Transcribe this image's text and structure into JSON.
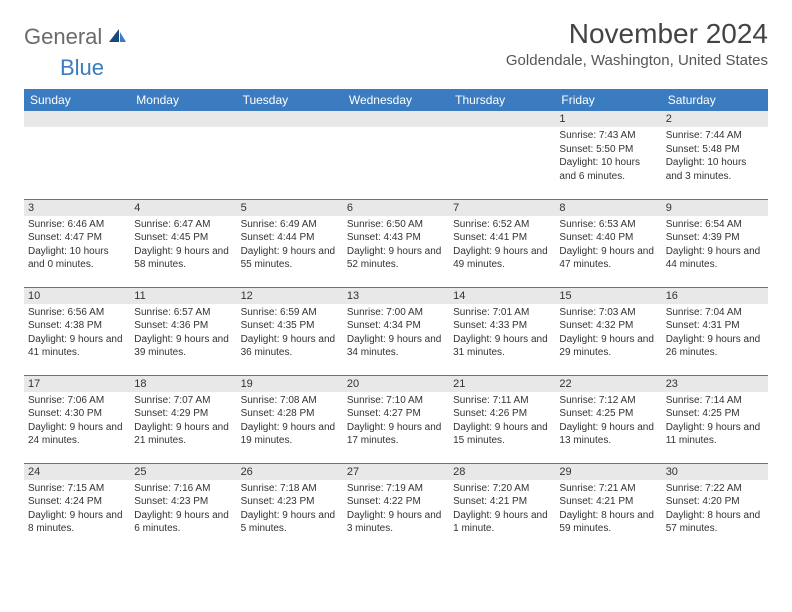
{
  "logo": {
    "text1": "General",
    "text2": "Blue"
  },
  "title": "November 2024",
  "location": "Goldendale, Washington, United States",
  "colors": {
    "header_bg": "#3b7bbf",
    "header_text": "#ffffff",
    "daynum_bg": "#e8e8e8",
    "border": "#3b7bbf",
    "logo_gray": "#6b6b6b",
    "logo_blue": "#3b7bbf"
  },
  "day_headers": [
    "Sunday",
    "Monday",
    "Tuesday",
    "Wednesday",
    "Thursday",
    "Friday",
    "Saturday"
  ],
  "weeks": [
    [
      null,
      null,
      null,
      null,
      null,
      {
        "num": "1",
        "sunrise": "Sunrise: 7:43 AM",
        "sunset": "Sunset: 5:50 PM",
        "daylight": "Daylight: 10 hours and 6 minutes."
      },
      {
        "num": "2",
        "sunrise": "Sunrise: 7:44 AM",
        "sunset": "Sunset: 5:48 PM",
        "daylight": "Daylight: 10 hours and 3 minutes."
      }
    ],
    [
      {
        "num": "3",
        "sunrise": "Sunrise: 6:46 AM",
        "sunset": "Sunset: 4:47 PM",
        "daylight": "Daylight: 10 hours and 0 minutes."
      },
      {
        "num": "4",
        "sunrise": "Sunrise: 6:47 AM",
        "sunset": "Sunset: 4:45 PM",
        "daylight": "Daylight: 9 hours and 58 minutes."
      },
      {
        "num": "5",
        "sunrise": "Sunrise: 6:49 AM",
        "sunset": "Sunset: 4:44 PM",
        "daylight": "Daylight: 9 hours and 55 minutes."
      },
      {
        "num": "6",
        "sunrise": "Sunrise: 6:50 AM",
        "sunset": "Sunset: 4:43 PM",
        "daylight": "Daylight: 9 hours and 52 minutes."
      },
      {
        "num": "7",
        "sunrise": "Sunrise: 6:52 AM",
        "sunset": "Sunset: 4:41 PM",
        "daylight": "Daylight: 9 hours and 49 minutes."
      },
      {
        "num": "8",
        "sunrise": "Sunrise: 6:53 AM",
        "sunset": "Sunset: 4:40 PM",
        "daylight": "Daylight: 9 hours and 47 minutes."
      },
      {
        "num": "9",
        "sunrise": "Sunrise: 6:54 AM",
        "sunset": "Sunset: 4:39 PM",
        "daylight": "Daylight: 9 hours and 44 minutes."
      }
    ],
    [
      {
        "num": "10",
        "sunrise": "Sunrise: 6:56 AM",
        "sunset": "Sunset: 4:38 PM",
        "daylight": "Daylight: 9 hours and 41 minutes."
      },
      {
        "num": "11",
        "sunrise": "Sunrise: 6:57 AM",
        "sunset": "Sunset: 4:36 PM",
        "daylight": "Daylight: 9 hours and 39 minutes."
      },
      {
        "num": "12",
        "sunrise": "Sunrise: 6:59 AM",
        "sunset": "Sunset: 4:35 PM",
        "daylight": "Daylight: 9 hours and 36 minutes."
      },
      {
        "num": "13",
        "sunrise": "Sunrise: 7:00 AM",
        "sunset": "Sunset: 4:34 PM",
        "daylight": "Daylight: 9 hours and 34 minutes."
      },
      {
        "num": "14",
        "sunrise": "Sunrise: 7:01 AM",
        "sunset": "Sunset: 4:33 PM",
        "daylight": "Daylight: 9 hours and 31 minutes."
      },
      {
        "num": "15",
        "sunrise": "Sunrise: 7:03 AM",
        "sunset": "Sunset: 4:32 PM",
        "daylight": "Daylight: 9 hours and 29 minutes."
      },
      {
        "num": "16",
        "sunrise": "Sunrise: 7:04 AM",
        "sunset": "Sunset: 4:31 PM",
        "daylight": "Daylight: 9 hours and 26 minutes."
      }
    ],
    [
      {
        "num": "17",
        "sunrise": "Sunrise: 7:06 AM",
        "sunset": "Sunset: 4:30 PM",
        "daylight": "Daylight: 9 hours and 24 minutes."
      },
      {
        "num": "18",
        "sunrise": "Sunrise: 7:07 AM",
        "sunset": "Sunset: 4:29 PM",
        "daylight": "Daylight: 9 hours and 21 minutes."
      },
      {
        "num": "19",
        "sunrise": "Sunrise: 7:08 AM",
        "sunset": "Sunset: 4:28 PM",
        "daylight": "Daylight: 9 hours and 19 minutes."
      },
      {
        "num": "20",
        "sunrise": "Sunrise: 7:10 AM",
        "sunset": "Sunset: 4:27 PM",
        "daylight": "Daylight: 9 hours and 17 minutes."
      },
      {
        "num": "21",
        "sunrise": "Sunrise: 7:11 AM",
        "sunset": "Sunset: 4:26 PM",
        "daylight": "Daylight: 9 hours and 15 minutes."
      },
      {
        "num": "22",
        "sunrise": "Sunrise: 7:12 AM",
        "sunset": "Sunset: 4:25 PM",
        "daylight": "Daylight: 9 hours and 13 minutes."
      },
      {
        "num": "23",
        "sunrise": "Sunrise: 7:14 AM",
        "sunset": "Sunset: 4:25 PM",
        "daylight": "Daylight: 9 hours and 11 minutes."
      }
    ],
    [
      {
        "num": "24",
        "sunrise": "Sunrise: 7:15 AM",
        "sunset": "Sunset: 4:24 PM",
        "daylight": "Daylight: 9 hours and 8 minutes."
      },
      {
        "num": "25",
        "sunrise": "Sunrise: 7:16 AM",
        "sunset": "Sunset: 4:23 PM",
        "daylight": "Daylight: 9 hours and 6 minutes."
      },
      {
        "num": "26",
        "sunrise": "Sunrise: 7:18 AM",
        "sunset": "Sunset: 4:23 PM",
        "daylight": "Daylight: 9 hours and 5 minutes."
      },
      {
        "num": "27",
        "sunrise": "Sunrise: 7:19 AM",
        "sunset": "Sunset: 4:22 PM",
        "daylight": "Daylight: 9 hours and 3 minutes."
      },
      {
        "num": "28",
        "sunrise": "Sunrise: 7:20 AM",
        "sunset": "Sunset: 4:21 PM",
        "daylight": "Daylight: 9 hours and 1 minute."
      },
      {
        "num": "29",
        "sunrise": "Sunrise: 7:21 AM",
        "sunset": "Sunset: 4:21 PM",
        "daylight": "Daylight: 8 hours and 59 minutes."
      },
      {
        "num": "30",
        "sunrise": "Sunrise: 7:22 AM",
        "sunset": "Sunset: 4:20 PM",
        "daylight": "Daylight: 8 hours and 57 minutes."
      }
    ]
  ]
}
